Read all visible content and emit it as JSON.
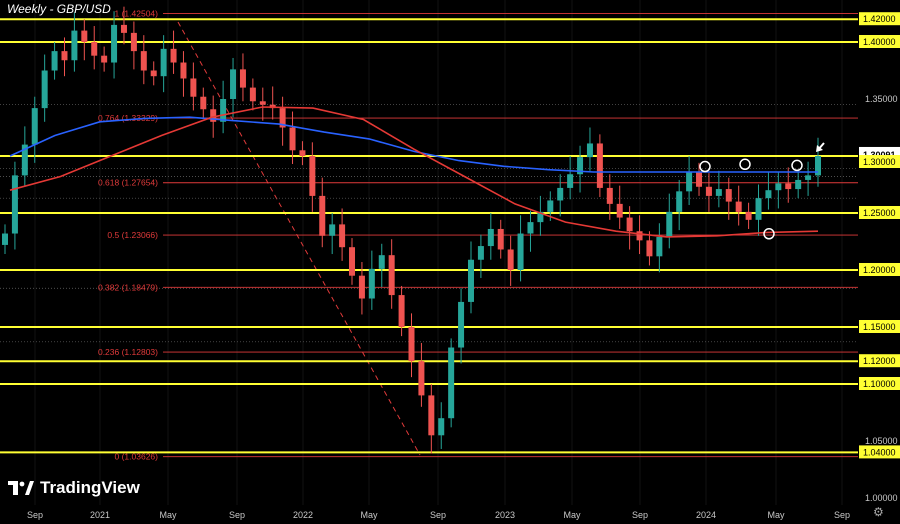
{
  "header": {
    "title": "Weekly - GBP/USD"
  },
  "branding": {
    "logo_text": "TradingView",
    "logo_icon": "tradingview-logo-icon"
  },
  "settings": {
    "icon": "gear-icon",
    "glyph": "⚙"
  },
  "colors": {
    "background": "#000000",
    "up": "#26a69a",
    "down": "#ef5350",
    "sr_line": "#ffff33",
    "fib": "#e03a3a",
    "ma_blue": "#2962ff",
    "ma_red": "#e53935",
    "price_tag": "#ffffff"
  },
  "chart_data": {
    "type": "candlestick",
    "title": "Weekly - GBP/USD",
    "ylim": [
      1.0,
      1.445
    ],
    "x_ticks": [
      "Sep",
      "2021",
      "May",
      "Sep",
      "2022",
      "May",
      "Sep",
      "2023",
      "May",
      "Sep",
      "2024",
      "May",
      "Sep"
    ],
    "price_labels": [
      "1.42000",
      "1.40000",
      "1.35000",
      "1.30091",
      "1.30000",
      "1.25000",
      "1.20000",
      "1.15000",
      "1.12000",
      "1.10000",
      "1.05000",
      "1.04000",
      "1.00000"
    ],
    "current_price": "1.30091",
    "horizontal_levels": [
      {
        "label": "1.42000",
        "value": 1.42
      },
      {
        "label": "1.40000",
        "value": 1.4
      },
      {
        "label": "1.30000",
        "value": 1.3
      },
      {
        "label": "1.25000",
        "value": 1.25
      },
      {
        "label": "1.20000",
        "value": 1.2
      },
      {
        "label": "1.15000",
        "value": 1.15
      },
      {
        "label": "1.12000",
        "value": 1.12
      },
      {
        "label": "1.10000",
        "value": 1.1
      },
      {
        "label": "1.04000",
        "value": 1.04
      }
    ],
    "fib_levels": [
      {
        "label": "1 (1.42504)",
        "value": 1.42504
      },
      {
        "label": "0.764 (1.33329)",
        "value": 1.33329
      },
      {
        "label": "0.618 (1.27654)",
        "value": 1.27654
      },
      {
        "label": "0.5 (1.23066)",
        "value": 1.23066
      },
      {
        "label": "0.382 (1.18479)",
        "value": 1.18479
      },
      {
        "label": "0.236 (1.12803)",
        "value": 1.12803
      },
      {
        "label": "0 (1.03626)",
        "value": 1.03626
      }
    ],
    "minor_levels": [
      1.345,
      1.289,
      1.282,
      1.263,
      1.184,
      1.137
    ],
    "close_series": [
      1.232,
      1.283,
      1.31,
      1.342,
      1.375,
      1.392,
      1.384,
      1.41,
      1.4,
      1.388,
      1.382,
      1.415,
      1.408,
      1.392,
      1.375,
      1.37,
      1.394,
      1.382,
      1.368,
      1.352,
      1.341,
      1.33,
      1.35,
      1.376,
      1.36,
      1.348,
      1.345,
      1.342,
      1.325,
      1.305,
      1.3,
      1.265,
      1.23,
      1.24,
      1.22,
      1.195,
      1.175,
      1.201,
      1.213,
      1.178,
      1.15,
      1.12,
      1.09,
      1.055,
      1.07,
      1.132,
      1.172,
      1.209,
      1.221,
      1.236,
      1.218,
      1.2,
      1.232,
      1.242,
      1.251,
      1.261,
      1.272,
      1.284,
      1.299,
      1.311,
      1.272,
      1.258,
      1.246,
      1.234,
      1.226,
      1.212,
      1.229,
      1.251,
      1.269,
      1.286,
      1.273,
      1.265,
      1.271,
      1.26,
      1.251,
      1.244,
      1.263,
      1.27,
      1.276,
      1.271,
      1.279,
      1.283,
      1.3
    ],
    "ma_blue": [
      1.3,
      1.318,
      1.33,
      1.333,
      1.334,
      1.331,
      1.328,
      1.321,
      1.315,
      1.304,
      1.296,
      1.291,
      1.288,
      1.286,
      1.286,
      1.286,
      1.286,
      1.286,
      1.286
    ],
    "ma_red": [
      1.27,
      1.282,
      1.3,
      1.318,
      1.334,
      1.343,
      1.342,
      1.332,
      1.306,
      1.282,
      1.258,
      1.242,
      1.234,
      1.229,
      1.23,
      1.233,
      1.234
    ],
    "circle_markers": [
      1.289,
      1.291,
      1.29,
      1.23
    ]
  }
}
